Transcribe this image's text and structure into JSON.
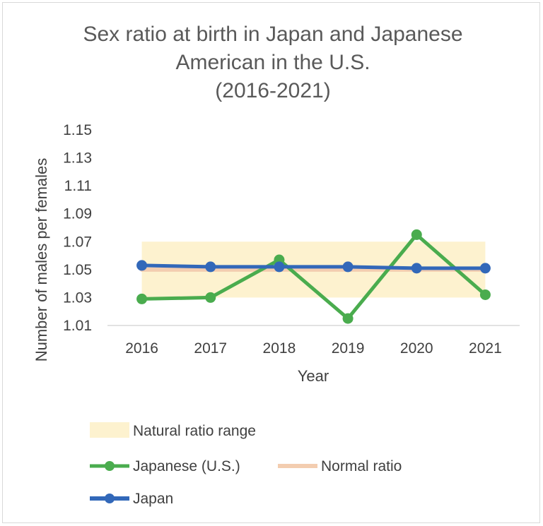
{
  "chart_data": {
    "type": "line",
    "title_lines": [
      "Sex ratio at birth in Japan and Japanese",
      "American in the U.S.",
      "(2016-2021)"
    ],
    "xlabel": "Year",
    "ylabel": "Number of males per females",
    "categories": [
      "2016",
      "2017",
      "2018",
      "2019",
      "2020",
      "2021"
    ],
    "ylim": [
      1.01,
      1.15
    ],
    "yticks": [
      "1.01",
      "1.03",
      "1.05",
      "1.07",
      "1.09",
      "1.11",
      "1.13",
      "1.15"
    ],
    "grid": false,
    "legend_position": "bottom",
    "band": {
      "name": "Natural ratio range",
      "low": 1.03,
      "high": 1.07,
      "color": "#fdf2cf"
    },
    "series": [
      {
        "name": "Japanese (U.S.)",
        "values": [
          1.029,
          1.03,
          1.057,
          1.015,
          1.075,
          1.032
        ],
        "color": "#4aac4e",
        "marker": true
      },
      {
        "name": "Normal ratio",
        "values": [
          1.05,
          1.05,
          1.05,
          1.05,
          1.05,
          1.05
        ],
        "color": "#f3cdb0",
        "marker": false
      },
      {
        "name": "Japan",
        "values": [
          1.053,
          1.052,
          1.052,
          1.052,
          1.051,
          1.051
        ],
        "color": "#3268b9",
        "marker": true
      }
    ]
  }
}
